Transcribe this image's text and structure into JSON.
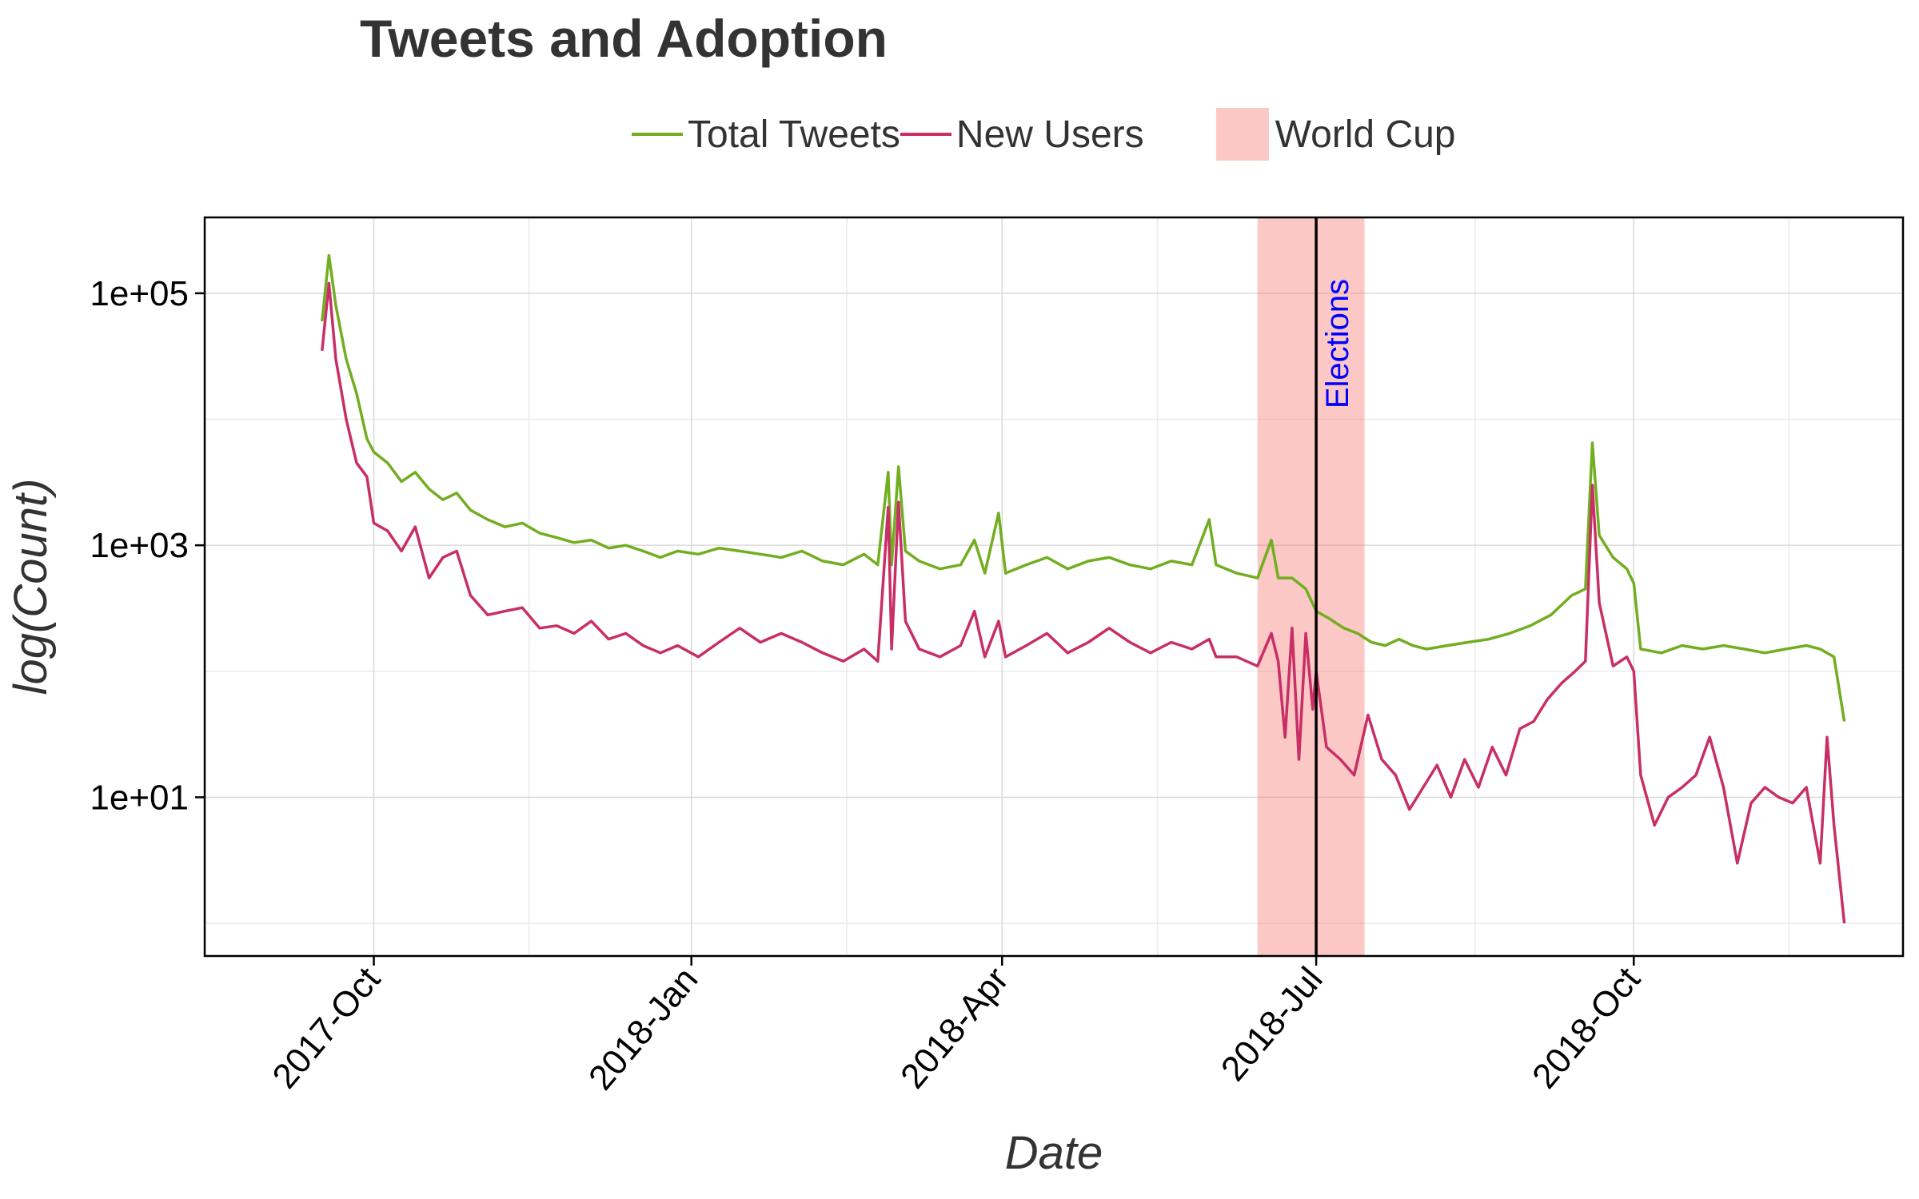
{
  "chart_data": {
    "type": "line",
    "title": "Tweets and Adoption",
    "xlabel": "Date",
    "ylabel": "log(Count)",
    "y_scale": "log10",
    "ylim": [
      0.55,
      400000
    ],
    "xlim": [
      "2017-08-13",
      "2018-12-18"
    ],
    "x_ticks": [
      {
        "date": "2017-10-01",
        "label": "2017-Oct"
      },
      {
        "date": "2018-01-01",
        "label": "2018-Jan"
      },
      {
        "date": "2018-04-01",
        "label": "2018-Apr"
      },
      {
        "date": "2018-07-01",
        "label": "2018-Jul"
      },
      {
        "date": "2018-10-01",
        "label": "2018-Oct"
      }
    ],
    "x_minor_ticks": [
      "2017-11-15",
      "2018-02-15",
      "2018-05-16",
      "2018-08-16",
      "2018-11-15"
    ],
    "y_ticks": [
      {
        "value": 10,
        "label": "1e+01"
      },
      {
        "value": 1000,
        "label": "1e+03"
      },
      {
        "value": 100000,
        "label": "1e+05"
      }
    ],
    "y_minor_ticks": [
      1,
      100,
      10000
    ],
    "grid": true,
    "legend_position": "top",
    "series": [
      {
        "name": "Total Tweets",
        "color": "#73ad21",
        "points": [
          [
            "2017-09-16",
            60000
          ],
          [
            "2017-09-18",
            200000
          ],
          [
            "2017-09-20",
            80000
          ],
          [
            "2017-09-23",
            30000
          ],
          [
            "2017-09-26",
            16000
          ],
          [
            "2017-09-29",
            7000
          ],
          [
            "2017-10-01",
            5500
          ],
          [
            "2017-10-05",
            4500
          ],
          [
            "2017-10-09",
            3200
          ],
          [
            "2017-10-13",
            3800
          ],
          [
            "2017-10-17",
            2800
          ],
          [
            "2017-10-21",
            2300
          ],
          [
            "2017-10-25",
            2600
          ],
          [
            "2017-10-29",
            1900
          ],
          [
            "2017-11-03",
            1600
          ],
          [
            "2017-11-08",
            1400
          ],
          [
            "2017-11-13",
            1500
          ],
          [
            "2017-11-18",
            1250
          ],
          [
            "2017-11-23",
            1150
          ],
          [
            "2017-11-28",
            1050
          ],
          [
            "2017-12-03",
            1100
          ],
          [
            "2017-12-08",
            950
          ],
          [
            "2017-12-13",
            1000
          ],
          [
            "2017-12-18",
            900
          ],
          [
            "2017-12-23",
            800
          ],
          [
            "2017-12-28",
            900
          ],
          [
            "2018-01-03",
            850
          ],
          [
            "2018-01-09",
            950
          ],
          [
            "2018-01-15",
            900
          ],
          [
            "2018-01-21",
            850
          ],
          [
            "2018-01-27",
            800
          ],
          [
            "2018-02-02",
            900
          ],
          [
            "2018-02-08",
            750
          ],
          [
            "2018-02-14",
            700
          ],
          [
            "2018-02-20",
            850
          ],
          [
            "2018-02-24",
            700
          ],
          [
            "2018-02-27",
            3800
          ],
          [
            "2018-02-28",
            700
          ],
          [
            "2018-03-02",
            4200
          ],
          [
            "2018-03-04",
            900
          ],
          [
            "2018-03-08",
            750
          ],
          [
            "2018-03-14",
            650
          ],
          [
            "2018-03-20",
            700
          ],
          [
            "2018-03-24",
            1100
          ],
          [
            "2018-03-27",
            600
          ],
          [
            "2018-03-31",
            1800
          ],
          [
            "2018-04-02",
            600
          ],
          [
            "2018-04-08",
            700
          ],
          [
            "2018-04-14",
            800
          ],
          [
            "2018-04-20",
            650
          ],
          [
            "2018-04-26",
            750
          ],
          [
            "2018-05-02",
            800
          ],
          [
            "2018-05-08",
            700
          ],
          [
            "2018-05-14",
            650
          ],
          [
            "2018-05-20",
            750
          ],
          [
            "2018-05-26",
            700
          ],
          [
            "2018-05-31",
            1600
          ],
          [
            "2018-06-02",
            700
          ],
          [
            "2018-06-08",
            600
          ],
          [
            "2018-06-14",
            550
          ],
          [
            "2018-06-18",
            1100
          ],
          [
            "2018-06-20",
            550
          ],
          [
            "2018-06-24",
            550
          ],
          [
            "2018-06-28",
            450
          ],
          [
            "2018-07-01",
            300
          ],
          [
            "2018-07-05",
            260
          ],
          [
            "2018-07-09",
            220
          ],
          [
            "2018-07-13",
            200
          ],
          [
            "2018-07-17",
            170
          ],
          [
            "2018-07-21",
            160
          ],
          [
            "2018-07-25",
            180
          ],
          [
            "2018-07-29",
            160
          ],
          [
            "2018-08-02",
            150
          ],
          [
            "2018-08-08",
            160
          ],
          [
            "2018-08-14",
            170
          ],
          [
            "2018-08-20",
            180
          ],
          [
            "2018-08-26",
            200
          ],
          [
            "2018-09-01",
            230
          ],
          [
            "2018-09-07",
            280
          ],
          [
            "2018-09-13",
            400
          ],
          [
            "2018-09-17",
            450
          ],
          [
            "2018-09-19",
            6500
          ],
          [
            "2018-09-21",
            1200
          ],
          [
            "2018-09-25",
            800
          ],
          [
            "2018-09-29",
            650
          ],
          [
            "2018-10-01",
            500
          ],
          [
            "2018-10-03",
            150
          ],
          [
            "2018-10-09",
            140
          ],
          [
            "2018-10-15",
            160
          ],
          [
            "2018-10-21",
            150
          ],
          [
            "2018-10-27",
            160
          ],
          [
            "2018-11-02",
            150
          ],
          [
            "2018-11-08",
            140
          ],
          [
            "2018-11-14",
            150
          ],
          [
            "2018-11-20",
            160
          ],
          [
            "2018-11-24",
            150
          ],
          [
            "2018-11-28",
            130
          ],
          [
            "2018-12-01",
            40
          ]
        ]
      },
      {
        "name": "New Users",
        "color": "#c72f66",
        "points": [
          [
            "2017-09-16",
            35000
          ],
          [
            "2017-09-18",
            120000
          ],
          [
            "2017-09-20",
            30000
          ],
          [
            "2017-09-23",
            10000
          ],
          [
            "2017-09-26",
            4500
          ],
          [
            "2017-09-29",
            3500
          ],
          [
            "2017-10-01",
            1500
          ],
          [
            "2017-10-05",
            1300
          ],
          [
            "2017-10-09",
            900
          ],
          [
            "2017-10-13",
            1400
          ],
          [
            "2017-10-17",
            550
          ],
          [
            "2017-10-21",
            800
          ],
          [
            "2017-10-25",
            900
          ],
          [
            "2017-10-29",
            400
          ],
          [
            "2017-11-03",
            280
          ],
          [
            "2017-11-08",
            300
          ],
          [
            "2017-11-13",
            320
          ],
          [
            "2017-11-18",
            220
          ],
          [
            "2017-11-23",
            230
          ],
          [
            "2017-11-28",
            200
          ],
          [
            "2017-12-03",
            250
          ],
          [
            "2017-12-08",
            180
          ],
          [
            "2017-12-13",
            200
          ],
          [
            "2017-12-18",
            160
          ],
          [
            "2017-12-23",
            140
          ],
          [
            "2017-12-28",
            160
          ],
          [
            "2018-01-03",
            130
          ],
          [
            "2018-01-09",
            170
          ],
          [
            "2018-01-15",
            220
          ],
          [
            "2018-01-21",
            170
          ],
          [
            "2018-01-27",
            200
          ],
          [
            "2018-02-02",
            170
          ],
          [
            "2018-02-08",
            140
          ],
          [
            "2018-02-14",
            120
          ],
          [
            "2018-02-20",
            150
          ],
          [
            "2018-02-24",
            120
          ],
          [
            "2018-02-27",
            2000
          ],
          [
            "2018-02-28",
            150
          ],
          [
            "2018-03-02",
            2200
          ],
          [
            "2018-03-04",
            250
          ],
          [
            "2018-03-08",
            150
          ],
          [
            "2018-03-14",
            130
          ],
          [
            "2018-03-20",
            160
          ],
          [
            "2018-03-24",
            300
          ],
          [
            "2018-03-27",
            130
          ],
          [
            "2018-03-31",
            250
          ],
          [
            "2018-04-02",
            130
          ],
          [
            "2018-04-08",
            160
          ],
          [
            "2018-04-14",
            200
          ],
          [
            "2018-04-20",
            140
          ],
          [
            "2018-04-26",
            170
          ],
          [
            "2018-05-02",
            220
          ],
          [
            "2018-05-08",
            170
          ],
          [
            "2018-05-14",
            140
          ],
          [
            "2018-05-20",
            170
          ],
          [
            "2018-05-26",
            150
          ],
          [
            "2018-05-31",
            180
          ],
          [
            "2018-06-02",
            130
          ],
          [
            "2018-06-08",
            130
          ],
          [
            "2018-06-14",
            110
          ],
          [
            "2018-06-18",
            200
          ],
          [
            "2018-06-20",
            120
          ],
          [
            "2018-06-24",
            220
          ],
          [
            "2018-06-28",
            200
          ],
          [
            "2018-06-22",
            30
          ],
          [
            "2018-06-26",
            20
          ],
          [
            "2018-06-30",
            50
          ],
          [
            "2018-07-01",
            100
          ],
          [
            "2018-07-04",
            25
          ],
          [
            "2018-07-08",
            20
          ],
          [
            "2018-07-12",
            15
          ],
          [
            "2018-07-16",
            45
          ],
          [
            "2018-07-20",
            20
          ],
          [
            "2018-07-24",
            15
          ],
          [
            "2018-07-28",
            8
          ],
          [
            "2018-08-01",
            12
          ],
          [
            "2018-08-05",
            18
          ],
          [
            "2018-08-09",
            10
          ],
          [
            "2018-08-13",
            20
          ],
          [
            "2018-08-17",
            12
          ],
          [
            "2018-08-21",
            25
          ],
          [
            "2018-08-25",
            15
          ],
          [
            "2018-08-29",
            35
          ],
          [
            "2018-09-02",
            40
          ],
          [
            "2018-09-06",
            60
          ],
          [
            "2018-09-10",
            80
          ],
          [
            "2018-09-14",
            100
          ],
          [
            "2018-09-17",
            120
          ],
          [
            "2018-09-19",
            3000
          ],
          [
            "2018-09-21",
            350
          ],
          [
            "2018-09-25",
            110
          ],
          [
            "2018-09-29",
            130
          ],
          [
            "2018-10-01",
            100
          ],
          [
            "2018-10-03",
            15
          ],
          [
            "2018-10-07",
            6
          ],
          [
            "2018-10-11",
            10
          ],
          [
            "2018-10-15",
            12
          ],
          [
            "2018-10-19",
            15
          ],
          [
            "2018-10-23",
            30
          ],
          [
            "2018-10-27",
            12
          ],
          [
            "2018-10-31",
            3
          ],
          [
            "2018-11-04",
            9
          ],
          [
            "2018-11-08",
            12
          ],
          [
            "2018-11-12",
            10
          ],
          [
            "2018-11-16",
            9
          ],
          [
            "2018-11-20",
            12
          ],
          [
            "2018-11-24",
            3
          ],
          [
            "2018-11-26",
            30
          ],
          [
            "2018-11-28",
            6
          ],
          [
            "2018-12-01",
            1
          ]
        ]
      }
    ],
    "bands": [
      {
        "name": "World Cup",
        "start": "2018-06-14",
        "end": "2018-07-15",
        "color": "#f8766d",
        "opacity": 0.4
      }
    ],
    "vlines": [
      {
        "date": "2018-07-01",
        "label": "Elections",
        "color": "#000000",
        "label_color": "#0000ff"
      }
    ]
  }
}
